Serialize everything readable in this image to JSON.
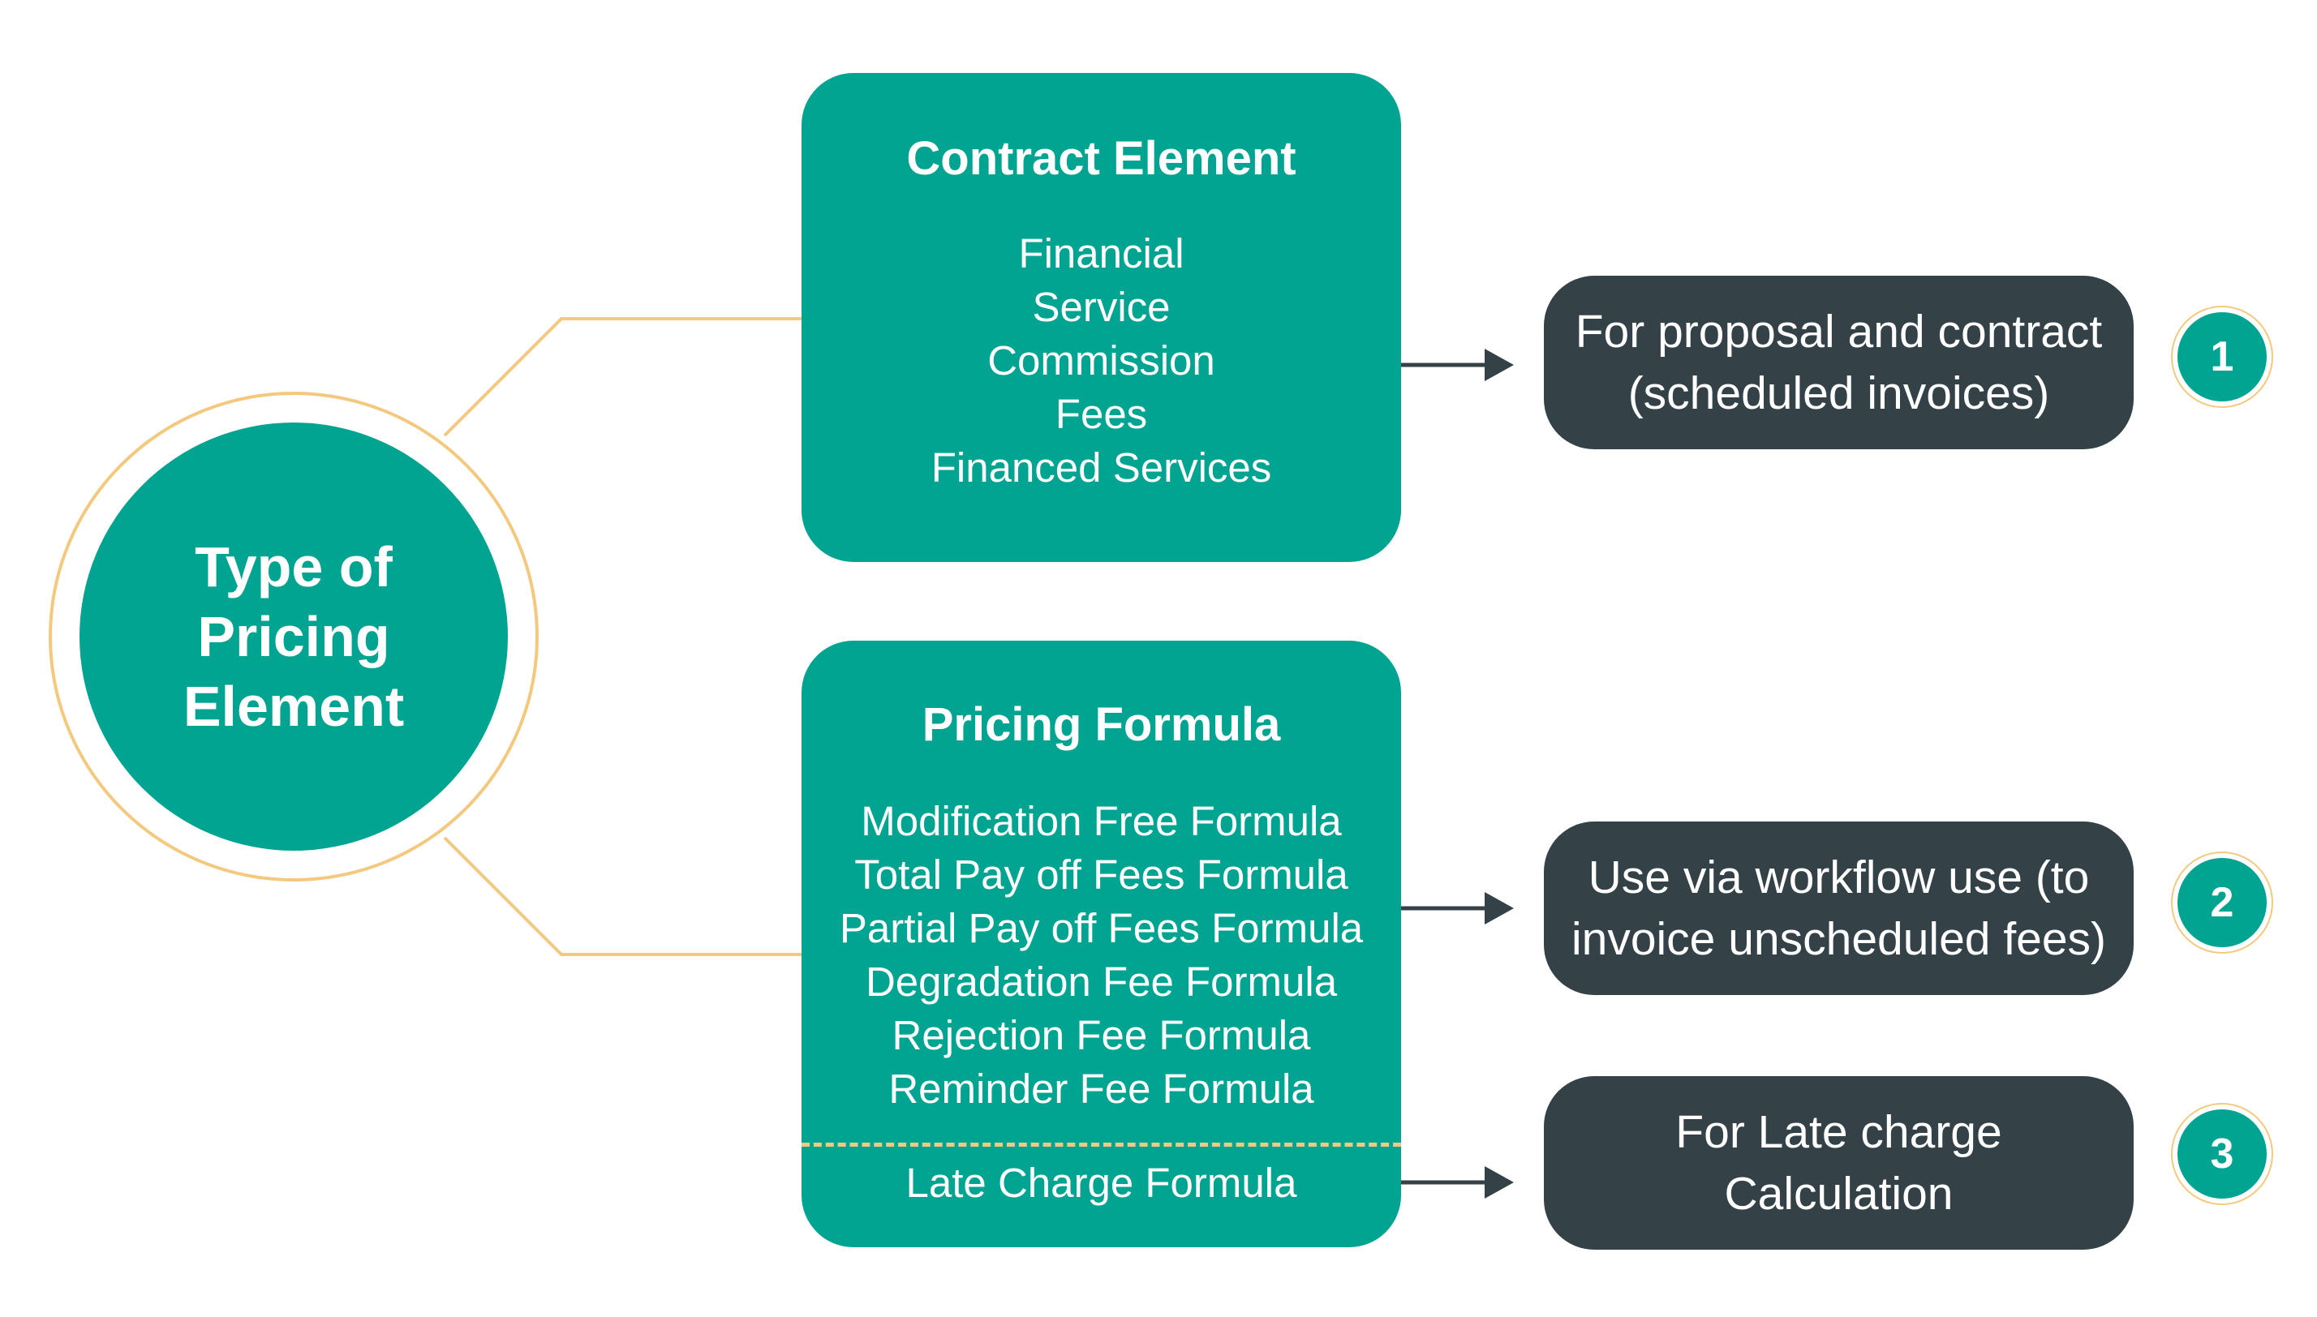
{
  "center": {
    "label": "Type of\nPricing\nElement"
  },
  "contract_element": {
    "title": "Contract Element",
    "items": [
      "Financial",
      "Service",
      "Commission",
      "Fees",
      "Financed Services"
    ]
  },
  "pricing_formula": {
    "title": "Pricing Formula",
    "items": [
      "Modification Free Formula",
      "Total Pay off Fees Formula",
      "Partial Pay off Fees Formula",
      "Degradation Fee Formula",
      "Rejection Fee Formula",
      "Reminder Fee Formula"
    ],
    "late_item": "Late Charge Formula"
  },
  "outcomes": [
    {
      "number": "1",
      "text_line1": "For proposal and contract",
      "text_line2": "(scheduled invoices)"
    },
    {
      "number": "2",
      "text_line1": "Use via workflow use (to",
      "text_line2": "invoice unscheduled fees)"
    },
    {
      "number": "3",
      "text_line1": "For Late charge",
      "text_line2": "Calculation"
    }
  ],
  "colors": {
    "teal": "#00a491",
    "dark_slate": "#344248",
    "connector_gold": "#f3c97f",
    "arrow": "#344248"
  }
}
